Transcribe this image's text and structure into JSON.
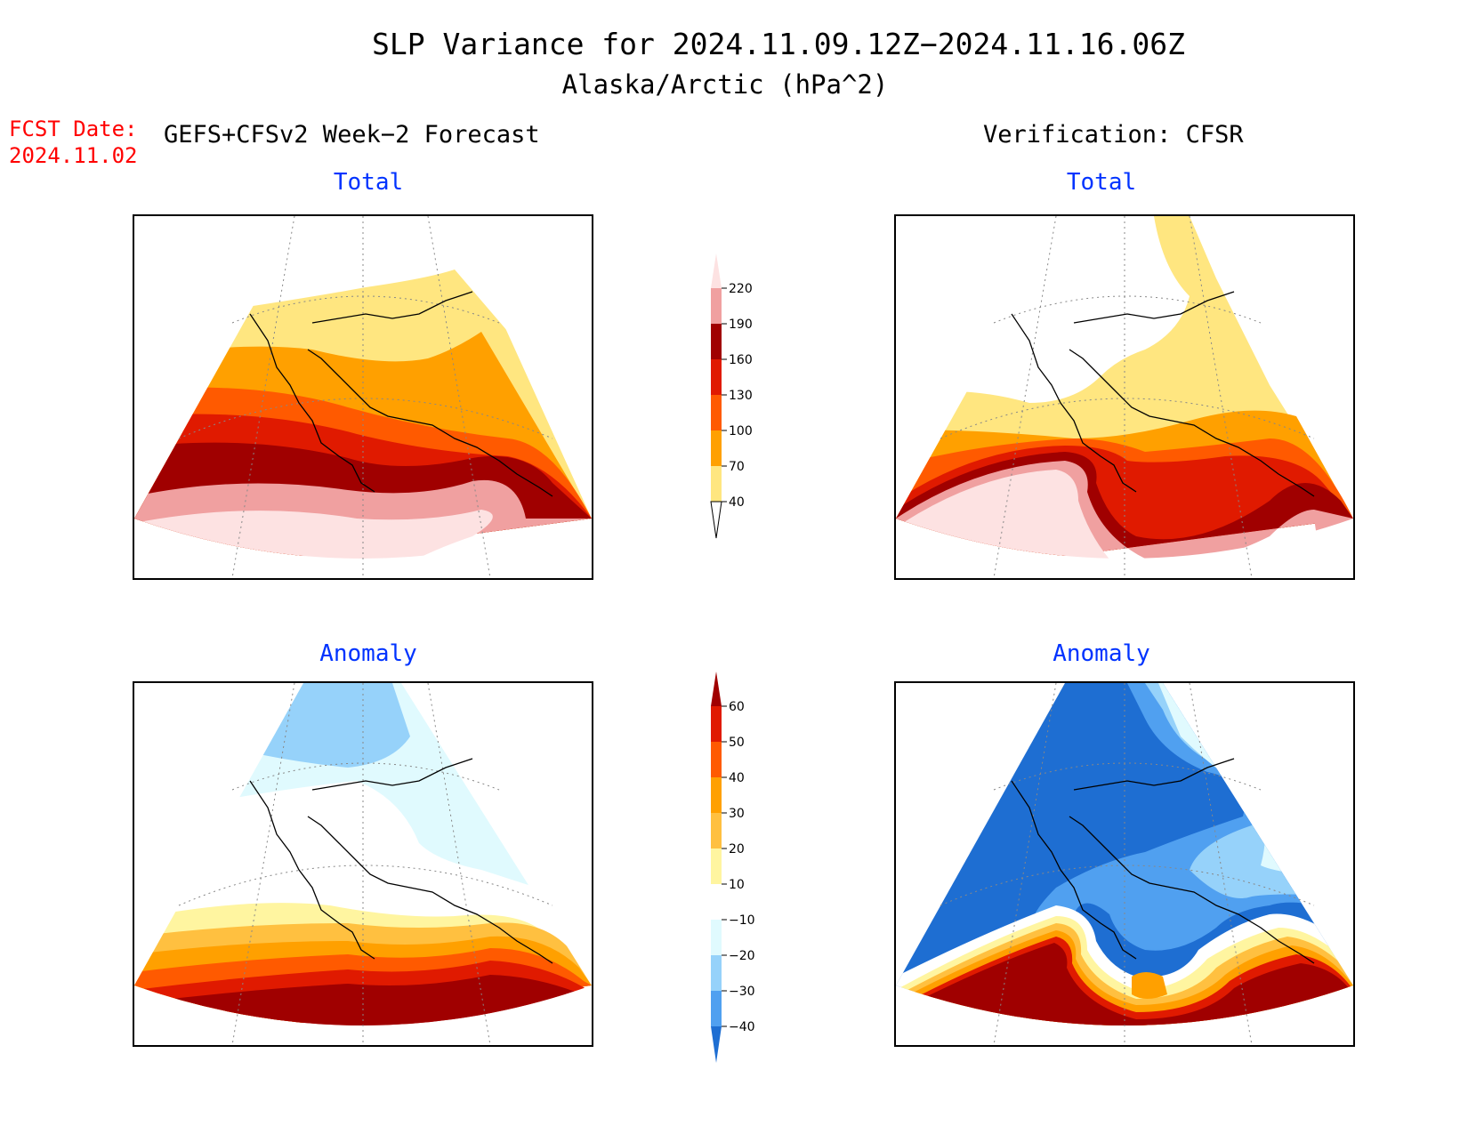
{
  "header": {
    "title_line1": "SLP Variance for 2024.11.09.12Z−2024.11.16.06Z",
    "title_line2": "Alaska/Arctic (hPa^2)",
    "fcst_label": "FCST Date:",
    "fcst_date": "2024.11.02",
    "left_column_title": "GEFS+CFSv2 Week−2 Forecast",
    "right_column_title": "Verification: CFSR"
  },
  "panels": {
    "forecast_total": {
      "label": "Total"
    },
    "verification_total": {
      "label": "Total"
    },
    "forecast_anomaly": {
      "label": "Anomaly"
    },
    "verification_anomaly": {
      "label": "Anomaly"
    }
  },
  "colorbar_total": {
    "ticks": [
      "220",
      "190",
      "160",
      "130",
      "100",
      "70",
      "40"
    ],
    "colors": {
      "below_40": "#ffffff",
      "40_70": "#ffe680",
      "70_100": "#ffa000",
      "100_130": "#ff5a00",
      "130_160": "#e01a00",
      "160_190": "#a00000",
      "190_220": "#f0a0a0",
      "above_220": "#fde2e2"
    }
  },
  "colorbar_anomaly": {
    "ticks": [
      "60",
      "50",
      "40",
      "30",
      "20",
      "10",
      "−10",
      "−20",
      "−30",
      "−40"
    ],
    "colors": {
      "above_60": "#a00000",
      "50_60": "#e01a00",
      "40_50": "#ff5a00",
      "30_40": "#ffa000",
      "20_30": "#ffc040",
      "10_20": "#fff5a0",
      "neg10_10": "#ffffff",
      "neg20_neg10": "#e0fafe",
      "neg30_neg20": "#96d2fa",
      "neg40_neg30": "#50a0f0",
      "below_neg40": "#1e6ed2"
    }
  }
}
